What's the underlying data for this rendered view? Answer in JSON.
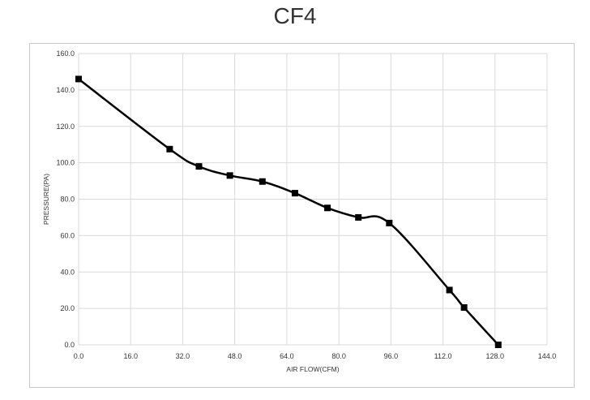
{
  "chart_data": {
    "type": "line",
    "title": "CF4",
    "xlabel": "AIR FLOW(CFM)",
    "ylabel": "PRESSURE(PA)",
    "xlim": [
      0,
      144
    ],
    "ylim": [
      0,
      160
    ],
    "xticks": [
      "0.0",
      "16.0",
      "32.0",
      "48.0",
      "64.0",
      "80.0",
      "96.0",
      "112.0",
      "128.0",
      "144.0"
    ],
    "yticks": [
      "0.0",
      "20.0",
      "40.0",
      "60.0",
      "80.0",
      "100.0",
      "120.0",
      "140.0",
      "160.0"
    ],
    "grid": true,
    "series": [
      {
        "color": "#000000",
        "marker": "square",
        "x": [
          0.0,
          28.0,
          37.0,
          46.5,
          56.5,
          66.5,
          76.5,
          86.0,
          95.5,
          114.0,
          118.5,
          129.0
        ],
        "y": [
          146.0,
          107.5,
          98.0,
          93.0,
          89.7,
          83.3,
          75.2,
          70.0,
          66.9,
          30.1,
          20.5,
          0.0
        ]
      }
    ]
  }
}
